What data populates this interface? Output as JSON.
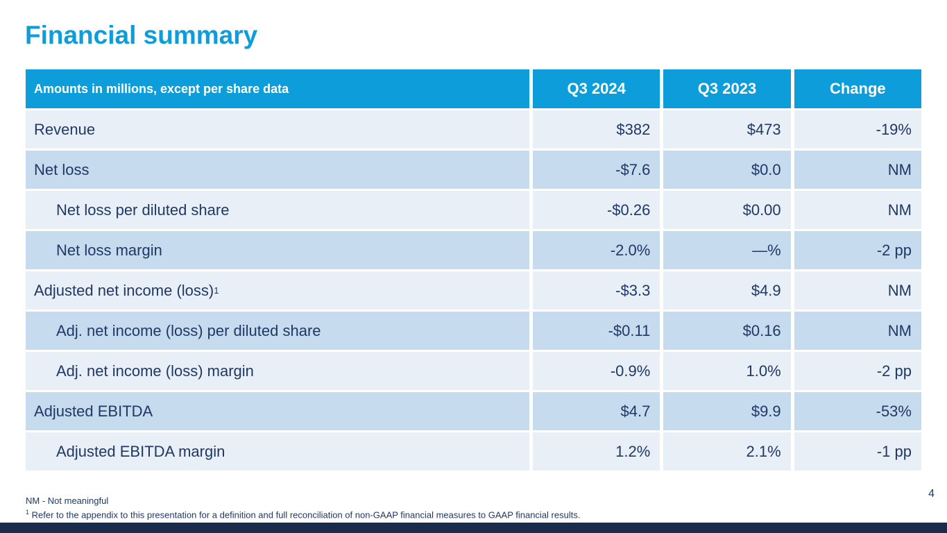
{
  "slide": {
    "title": "Financial summary",
    "page_number": "4"
  },
  "table": {
    "header": {
      "label": "Amounts in millions, except per share data",
      "col_q3_2024": "Q3 2024",
      "col_q3_2023": "Q3 2023",
      "col_change": "Change"
    },
    "rows": [
      {
        "label": "Revenue",
        "indent": false,
        "q3_2024": "$382",
        "q3_2023": "$473",
        "change": "-19%"
      },
      {
        "label": "Net loss",
        "indent": false,
        "q3_2024": "-$7.6",
        "q3_2023": "$0.0",
        "change": "NM"
      },
      {
        "label": "Net loss per diluted share",
        "indent": true,
        "q3_2024": "-$0.26",
        "q3_2023": "$0.00",
        "change": "NM"
      },
      {
        "label": "Net loss margin",
        "indent": true,
        "q3_2024": "-2.0%",
        "q3_2023": "—%",
        "change": "-2 pp"
      },
      {
        "label": "Adjusted net income (loss)",
        "superscript": "1",
        "indent": false,
        "q3_2024": "-$3.3",
        "q3_2023": "$4.9",
        "change": "NM"
      },
      {
        "label": "Adj. net income (loss) per diluted share",
        "indent": true,
        "q3_2024": "-$0.11",
        "q3_2023": "$0.16",
        "change": "NM"
      },
      {
        "label": "Adj. net income (loss) margin",
        "indent": true,
        "q3_2024": "-0.9%",
        "q3_2023": "1.0%",
        "change": "-2 pp"
      },
      {
        "label": "Adjusted EBITDA",
        "indent": false,
        "q3_2024": "$4.7",
        "q3_2023": "$9.9",
        "change": "-53%"
      },
      {
        "label": "Adjusted EBITDA margin",
        "indent": true,
        "q3_2024": "1.2%",
        "q3_2023": "2.1%",
        "change": "-1 pp"
      }
    ]
  },
  "footnotes": {
    "nm_note": "NM - Not meaningful",
    "footnote_sup": "1",
    "footnote_text": "Refer to the appendix to this presentation for a definition and full reconciliation of non-GAAP financial measures to GAAP financial results."
  },
  "colors": {
    "accent_blue": "#0D9DDB",
    "row_dark": "#C7DBEF",
    "row_light": "#E9EFF7",
    "text_navy": "#1F3864",
    "footer_bar_navy": "#1B2B4C"
  }
}
